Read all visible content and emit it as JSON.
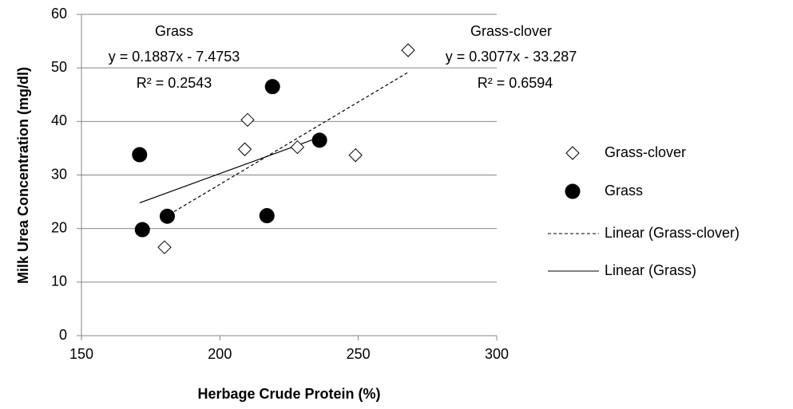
{
  "chart_data": {
    "type": "scatter",
    "xlabel": "Herbage Crude Protein (%)",
    "ylabel": "Milk Urea Concentration (mg/dl)",
    "xlim": [
      150,
      300
    ],
    "xticks": [
      150,
      200,
      250,
      300
    ],
    "ylim": [
      0,
      60
    ],
    "yticks": [
      0,
      10,
      20,
      30,
      40,
      50,
      60
    ],
    "grid": true,
    "legend": "right",
    "series": [
      {
        "name": "Grass-clover",
        "marker": "diamond",
        "color": "#ffffff",
        "x": [
          180,
          209,
          210,
          228,
          249,
          268
        ],
        "y": [
          16.5,
          34.8,
          40.3,
          35.2,
          33.7,
          53.3
        ]
      },
      {
        "name": "Grass",
        "marker": "circle",
        "color": "#000000",
        "x": [
          171,
          172,
          181,
          217,
          219,
          236
        ],
        "y": [
          33.8,
          19.8,
          22.3,
          22.4,
          46.5,
          36.5
        ]
      }
    ],
    "trendlines": [
      {
        "name": "Linear (Grass-clover)",
        "style": "dashed",
        "slope": 0.3077,
        "intercept": -33.287,
        "label": "Grass-clover",
        "equation": "y = 0.3077x - 33.287",
        "r2": "R² = 0.6594"
      },
      {
        "name": "Linear (Grass)",
        "style": "solid",
        "slope": 0.1887,
        "intercept": -7.4753,
        "label": "Grass",
        "equation": "y = 0.1887x - 7.4753",
        "r2": "R² = 0.2543"
      }
    ]
  }
}
